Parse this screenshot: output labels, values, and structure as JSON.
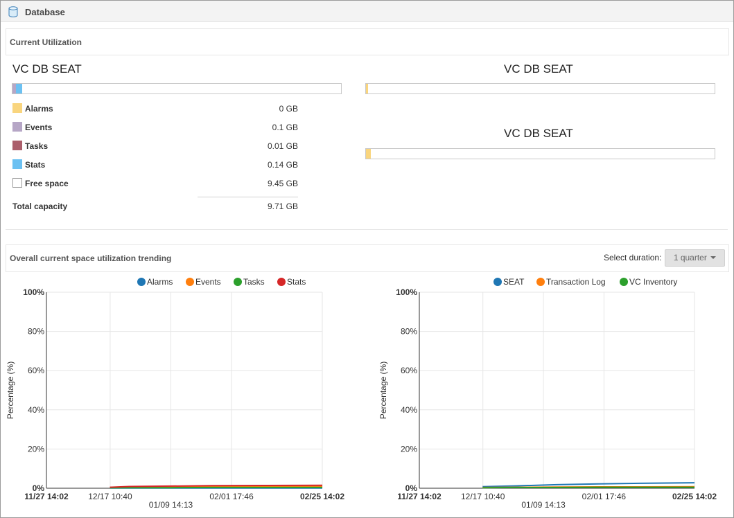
{
  "header": {
    "title": "Database",
    "icon": "database-icon"
  },
  "current_utilization": {
    "heading": "Current Utilization",
    "left_title": "VC DB SEAT",
    "right_titles": [
      "VC DB SEAT",
      "VC DB SEAT"
    ],
    "legend": [
      {
        "label": "Alarms",
        "value": "0 GB",
        "color": "#f9d57e"
      },
      {
        "label": "Events",
        "value": "0.1 GB",
        "color": "#b6a6c6"
      },
      {
        "label": "Tasks",
        "value": "0.01 GB",
        "color": "#ab5e6b"
      },
      {
        "label": "Stats",
        "value": "0.14 GB",
        "color": "#6cc1f2"
      },
      {
        "label": "Free space",
        "value": "9.45 GB",
        "color": "#ffffff"
      }
    ],
    "total_label": "Total capacity",
    "total_value": "9.71 GB"
  },
  "trending": {
    "heading": "Overall current space utilization trending",
    "duration_label": "Select duration:",
    "duration_value": "1 quarter",
    "caret_icon": "caret-down-icon"
  },
  "chart_data": [
    {
      "type": "line",
      "ylabel": "Percentage (%)",
      "ylim": [
        0,
        100
      ],
      "yticks": [
        "0%",
        "20%",
        "40%",
        "60%",
        "80%",
        "100%"
      ],
      "xticks": [
        {
          "label": "11/27 14:02",
          "bold": true,
          "row": 0,
          "x": 0
        },
        {
          "label": "12/17 10:40",
          "bold": false,
          "row": 0,
          "x": 0.231
        },
        {
          "label": "01/09 14:13",
          "bold": false,
          "row": 1,
          "x": 0.451
        },
        {
          "label": "02/01 17:46",
          "bold": false,
          "row": 0,
          "x": 0.671
        },
        {
          "label": "02/25 14:02",
          "bold": true,
          "row": 0,
          "x": 1
        }
      ],
      "gridlines_x": [
        0.231,
        0.451,
        0.671,
        1
      ],
      "legend_position": "top-center",
      "series": [
        {
          "name": "Alarms",
          "color": "#1f77b4",
          "x": [
            0.23,
            0.3,
            0.45,
            0.6,
            0.8,
            1.0
          ],
          "values": [
            0.1,
            0.1,
            0.1,
            0.1,
            0.1,
            0.1
          ]
        },
        {
          "name": "Events",
          "color": "#ff7f0e",
          "x": [
            0.23,
            0.3,
            0.45,
            0.6,
            0.8,
            1.0
          ],
          "values": [
            0.4,
            0.6,
            0.7,
            0.8,
            0.9,
            1.0
          ]
        },
        {
          "name": "Tasks",
          "color": "#2ca02c",
          "x": [
            0.23,
            0.3,
            0.45,
            0.6,
            0.8,
            1.0
          ],
          "values": [
            0.2,
            0.3,
            0.3,
            0.4,
            0.4,
            0.4
          ]
        },
        {
          "name": "Stats",
          "color": "#d62728",
          "x": [
            0.23,
            0.3,
            0.45,
            0.6,
            0.8,
            1.0
          ],
          "values": [
            0.5,
            0.9,
            1.1,
            1.3,
            1.4,
            1.5
          ]
        }
      ]
    },
    {
      "type": "line",
      "ylabel": "Percentage (%)",
      "ylim": [
        0,
        100
      ],
      "yticks": [
        "0%",
        "20%",
        "40%",
        "60%",
        "80%",
        "100%"
      ],
      "xticks": [
        {
          "label": "11/27 14:02",
          "bold": true,
          "row": 0,
          "x": 0
        },
        {
          "label": "12/17 10:40",
          "bold": false,
          "row": 0,
          "x": 0.231
        },
        {
          "label": "01/09 14:13",
          "bold": false,
          "row": 1,
          "x": 0.451
        },
        {
          "label": "02/01 17:46",
          "bold": false,
          "row": 0,
          "x": 0.671
        },
        {
          "label": "02/25 14:02",
          "bold": true,
          "row": 0,
          "x": 1
        }
      ],
      "gridlines_x": [
        0.231,
        0.451,
        0.671,
        1
      ],
      "legend_position": "top-center",
      "series": [
        {
          "name": "SEAT",
          "color": "#1f77b4",
          "x": [
            0.23,
            0.35,
            0.5,
            0.65,
            0.8,
            1.0
          ],
          "values": [
            0.8,
            1.2,
            1.8,
            2.2,
            2.5,
            2.8
          ]
        },
        {
          "name": "Transaction Log",
          "color": "#ff7f0e",
          "x": [
            0.23,
            0.35,
            0.5,
            0.65,
            0.8,
            1.0
          ],
          "values": [
            0.4,
            0.5,
            0.6,
            0.7,
            0.7,
            0.8
          ]
        },
        {
          "name": "VC Inventory",
          "color": "#2ca02c",
          "x": [
            0.23,
            0.35,
            0.5,
            0.65,
            0.8,
            1.0
          ],
          "values": [
            0.3,
            0.4,
            0.4,
            0.5,
            0.5,
            0.5
          ]
        }
      ]
    }
  ]
}
